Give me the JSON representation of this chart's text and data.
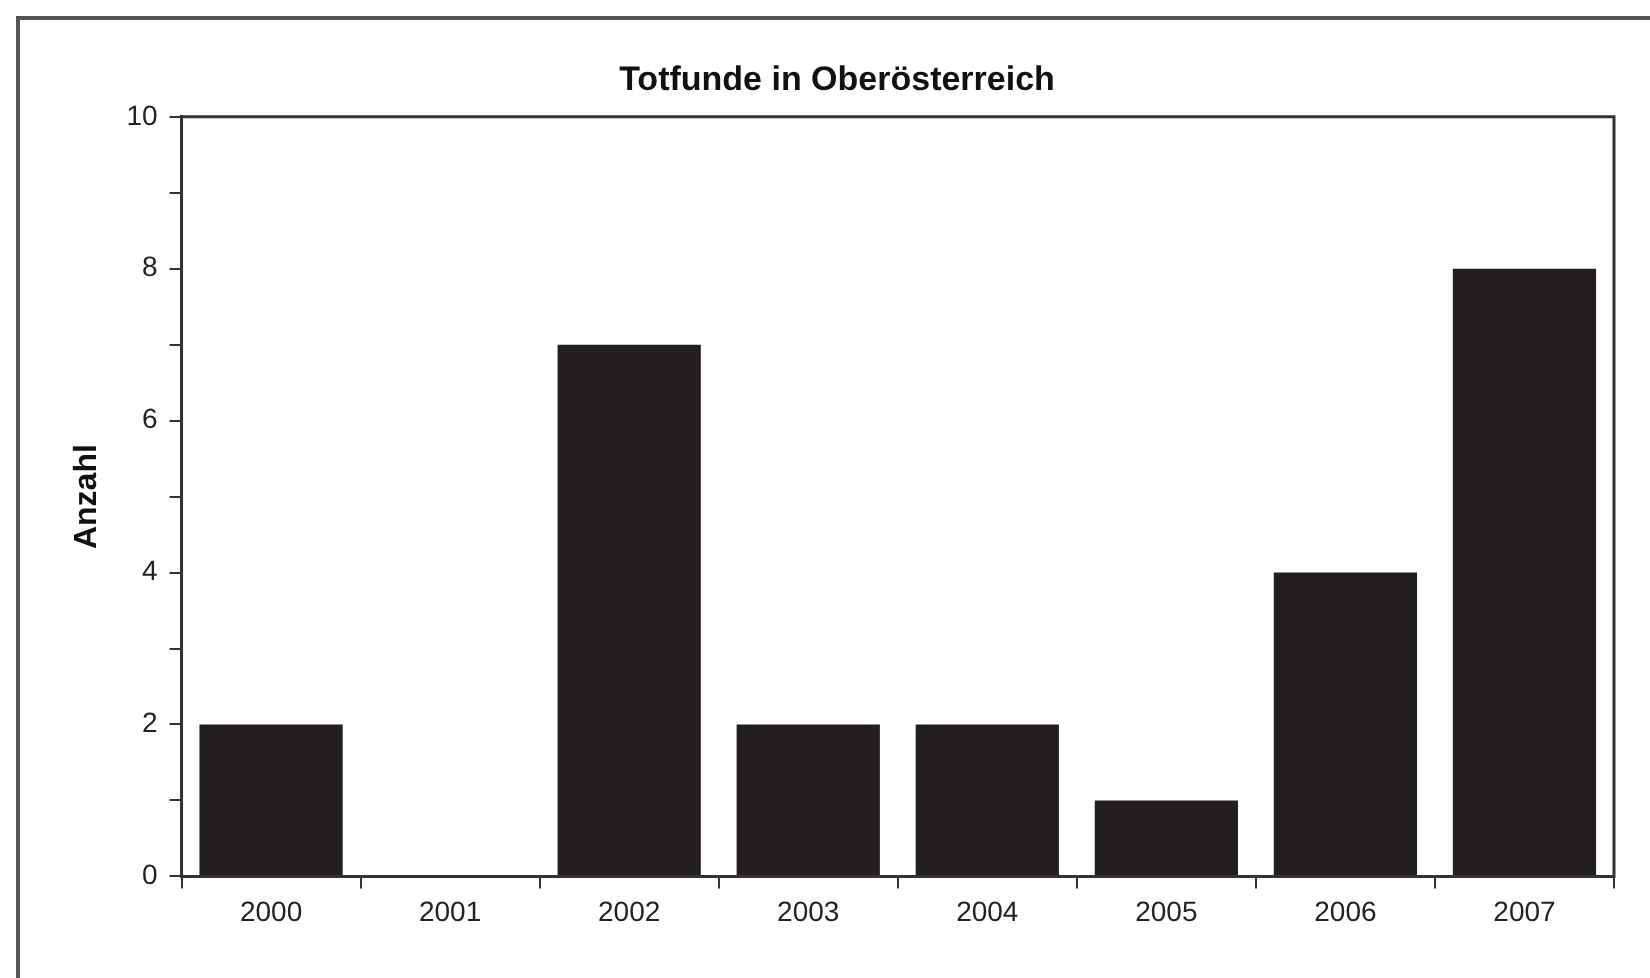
{
  "chart_data": {
    "type": "bar",
    "title": "Totfunde in Oberösterreich",
    "ylabel": "Anzahl",
    "categories": [
      "2000",
      "2001",
      "2002",
      "2003",
      "2004",
      "2005",
      "2006",
      "2007"
    ],
    "values": [
      2,
      0,
      7,
      2,
      2,
      1,
      4,
      8
    ],
    "color": "#231f20",
    "ylim": [
      0,
      10
    ],
    "yticks": [
      0,
      {
        "value": 1,
        "label": null
      },
      2,
      {
        "value": 3,
        "label": null
      },
      4,
      {
        "value": 5,
        "label": null
      },
      6,
      {
        "value": 7,
        "label": null
      },
      8,
      {
        "value": 9,
        "label": null
      },
      10
    ],
    "grid": false,
    "legend": false
  }
}
